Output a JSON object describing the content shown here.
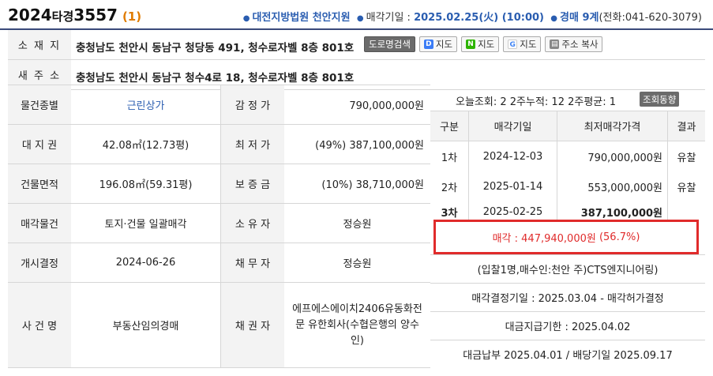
{
  "header": {
    "case_year": "2024",
    "case_type": "타경",
    "case_num": "3557",
    "case_count": "(1)",
    "court": "대전지방법원 천안지원",
    "sale_date_label": "매각기일 :",
    "sale_date": "2025.02.25(火) (10:00)",
    "dept": "경매 9계",
    "phone": "(전화:041-620-3079)"
  },
  "address": {
    "label": "소 재 지",
    "text": "충청남도 천안시 동남구 청당동 491, 청수로자벨 8층 801호",
    "buttons": [
      "도로명검색",
      "지도",
      "지도",
      "지도",
      "주소 복사"
    ]
  },
  "new_address": {
    "label": "새 주 소",
    "text": "충청남도 천안시 동남구 청수4로 18, 청수로자벨 8층 801호"
  },
  "grid": [
    {
      "l1": "물건종별",
      "v1": "근린상가",
      "l2": "감 정 가",
      "v2": "790,000,000원"
    },
    {
      "l1": "대 지 권",
      "v1": "42.08㎡(12.73평)",
      "l2": "최 저 가",
      "v2": "(49%) 387,100,000원"
    },
    {
      "l1": "건물면적",
      "v1": "196.08㎡(59.31평)",
      "l2": "보 증 금",
      "v2": "(10%) 38,710,000원"
    },
    {
      "l1": "매각물건",
      "v1": "토지·건물 일괄매각",
      "l2": "소 유 자",
      "v2": "정승원"
    },
    {
      "l1": "개시결정",
      "v1": "2024-06-26",
      "l2": "채 무 자",
      "v2": "정승원"
    },
    {
      "l1": "사 건 명",
      "v1": "부동산임의경매",
      "l2": "채 권 자",
      "v2": "에프에스에이치2406유동화전문 유한회사(수협은행의 양수인)"
    }
  ],
  "stats": {
    "text": "오늘조회: 2  2주누적: 12  2주평균: 1",
    "button": "조회동향"
  },
  "round_table": {
    "headers": [
      "구분",
      "매각기일",
      "최저매각가격",
      "결과"
    ],
    "rows": [
      {
        "round": "1차",
        "date": "2024-12-03",
        "price": "790,000,000원",
        "result": "유찰"
      },
      {
        "round": "2차",
        "date": "2025-01-14",
        "price": "553,000,000원",
        "result": "유찰"
      },
      {
        "round": "3차",
        "date": "2025-02-25",
        "price": "387,100,000원",
        "result": ""
      }
    ]
  },
  "sale_result": {
    "label": "매각 :",
    "price": "447,940,000원",
    "rate": "(56.7%)"
  },
  "bid_info": "(입찰1명,매수인:천안 주)CTS엔지니어링)",
  "decision": "매각결정기일 : 2025.03.04 - 매각허가결정",
  "payment_deadline": "대금지급기한 : 2025.04.02",
  "payment_done": "대금납부 2025.04.01 / 배당기일 2025.09.17",
  "colors": {
    "accent": "#2a5db0",
    "highlight": "#e02b2b",
    "count": "#e07b00"
  }
}
